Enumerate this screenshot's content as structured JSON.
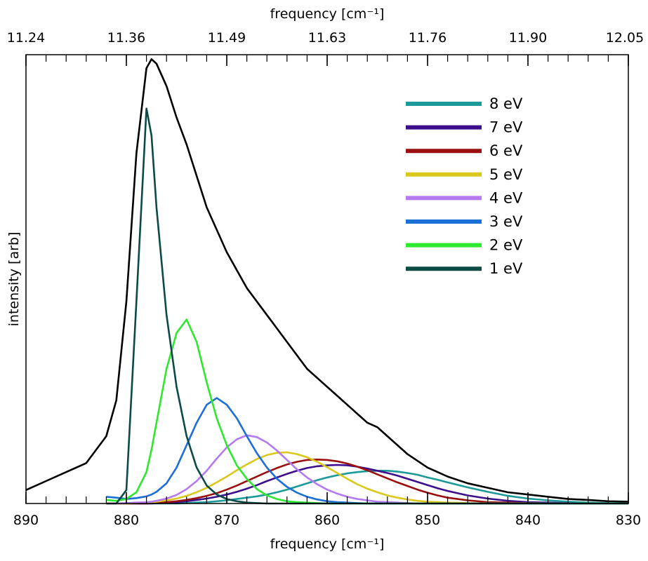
{
  "chart_data": {
    "type": "line",
    "xlabel": "frequency [cm⁻¹]",
    "x2label": "frequency [cm⁻¹]",
    "ylabel": "intensity [arb]",
    "xlim": [
      890,
      830
    ],
    "ylim": [
      0,
      1
    ],
    "x_ticks": [
      "890",
      "880",
      "870",
      "860",
      "850",
      "840",
      "830"
    ],
    "x2_ticks": [
      "11.24",
      "11.36",
      "11.49",
      "11.63",
      "11.76",
      "11.90",
      "12.05"
    ],
    "grid": false,
    "legend_position": "top-right",
    "x": [
      890,
      888,
      886,
      884,
      882,
      881,
      880,
      879,
      878,
      877.5,
      877,
      876,
      875,
      874,
      873,
      872,
      871,
      870,
      869,
      868,
      867,
      866,
      865,
      864,
      863,
      862,
      861,
      860,
      859,
      858,
      857,
      856,
      855,
      854,
      853,
      852,
      851,
      850,
      849,
      848,
      846,
      844,
      842,
      840,
      838,
      836,
      834,
      832,
      830
    ],
    "series": [
      {
        "name": "total",
        "color": "#000000",
        "values": [
          0.03,
          0.05,
          0.07,
          0.09,
          0.15,
          0.23,
          0.45,
          0.78,
          0.97,
          0.99,
          0.98,
          0.93,
          0.86,
          0.8,
          0.73,
          0.66,
          0.61,
          0.56,
          0.52,
          0.48,
          0.45,
          0.42,
          0.39,
          0.36,
          0.33,
          0.3,
          0.28,
          0.26,
          0.24,
          0.22,
          0.2,
          0.18,
          0.17,
          0.15,
          0.13,
          0.11,
          0.095,
          0.08,
          0.07,
          0.06,
          0.045,
          0.035,
          0.025,
          0.02,
          0.015,
          0.01,
          0.008,
          0.005,
          0.004
        ]
      },
      {
        "name": "8 eV",
        "color": "#1c9a9a",
        "values": [
          null,
          null,
          null,
          null,
          0.0,
          0.0,
          0.0,
          0.0,
          0.0,
          0.0,
          0.0,
          0.0,
          0.0,
          0.001,
          0.002,
          0.003,
          0.005,
          0.007,
          0.01,
          0.013,
          0.016,
          0.02,
          0.025,
          0.031,
          0.038,
          0.045,
          0.052,
          0.058,
          0.063,
          0.067,
          0.07,
          0.072,
          0.073,
          0.073,
          0.071,
          0.068,
          0.064,
          0.058,
          0.053,
          0.047,
          0.036,
          0.026,
          0.017,
          0.011,
          0.007,
          0.004,
          0.002,
          0.001,
          0.0
        ]
      },
      {
        "name": "7 eV",
        "color": "#3d0f8c",
        "values": [
          null,
          null,
          null,
          null,
          0.0,
          0.0,
          0.0,
          0.0,
          0.0,
          0.0,
          0.001,
          0.002,
          0.003,
          0.005,
          0.008,
          0.011,
          0.015,
          0.02,
          0.026,
          0.033,
          0.041,
          0.05,
          0.058,
          0.066,
          0.073,
          0.079,
          0.083,
          0.085,
          0.086,
          0.085,
          0.082,
          0.078,
          0.073,
          0.068,
          0.062,
          0.055,
          0.048,
          0.041,
          0.034,
          0.028,
          0.018,
          0.011,
          0.006,
          0.003,
          0.002,
          0.001,
          0.0,
          0.0,
          0.0
        ]
      },
      {
        "name": "6 eV",
        "color": "#9a0f0f",
        "values": [
          null,
          null,
          null,
          null,
          0.0,
          0.0,
          0.0,
          0.0,
          0.0,
          0.001,
          0.002,
          0.003,
          0.005,
          0.008,
          0.012,
          0.017,
          0.023,
          0.031,
          0.04,
          0.05,
          0.06,
          0.07,
          0.079,
          0.087,
          0.093,
          0.097,
          0.098,
          0.097,
          0.094,
          0.089,
          0.082,
          0.074,
          0.065,
          0.056,
          0.047,
          0.039,
          0.031,
          0.024,
          0.018,
          0.013,
          0.007,
          0.003,
          0.002,
          0.001,
          0.0,
          0.0,
          0.0,
          0.0,
          0.0
        ]
      },
      {
        "name": "5 eV",
        "color": "#dbc81c",
        "values": [
          null,
          null,
          null,
          null,
          0.0,
          0.0,
          0.0,
          0.001,
          0.002,
          0.003,
          0.004,
          0.007,
          0.011,
          0.017,
          0.025,
          0.035,
          0.047,
          0.06,
          0.074,
          0.087,
          0.099,
          0.108,
          0.113,
          0.114,
          0.11,
          0.103,
          0.093,
          0.081,
          0.068,
          0.055,
          0.043,
          0.033,
          0.025,
          0.018,
          0.013,
          0.009,
          0.006,
          0.004,
          0.003,
          0.002,
          0.001,
          0.0,
          0.0,
          0.0,
          0.0,
          0.0,
          0.0,
          0.0,
          0.0
        ]
      },
      {
        "name": "4 eV",
        "color": "#b57af0",
        "values": [
          null,
          null,
          null,
          null,
          0.0,
          0.0,
          0.001,
          0.002,
          0.003,
          0.004,
          0.006,
          0.011,
          0.019,
          0.032,
          0.05,
          0.073,
          0.1,
          0.125,
          0.143,
          0.152,
          0.148,
          0.136,
          0.118,
          0.097,
          0.076,
          0.058,
          0.043,
          0.031,
          0.022,
          0.015,
          0.01,
          0.007,
          0.004,
          0.003,
          0.002,
          0.001,
          0.0,
          0.0,
          0.0,
          0.0,
          0.0,
          0.0,
          0.0,
          0.0,
          0.0,
          0.0,
          0.0,
          0.0,
          0.0
        ]
      },
      {
        "name": "3 eV",
        "color": "#1c6fd6",
        "values": [
          null,
          null,
          null,
          null,
          0.015,
          0.013,
          0.01,
          0.012,
          0.016,
          0.02,
          0.026,
          0.045,
          0.08,
          0.13,
          0.18,
          0.22,
          0.235,
          0.22,
          0.19,
          0.15,
          0.112,
          0.08,
          0.055,
          0.037,
          0.024,
          0.015,
          0.009,
          0.005,
          0.003,
          0.002,
          0.001,
          0.0,
          0.0,
          0.0,
          0.0,
          0.0,
          0.0,
          0.0,
          0.0,
          0.0,
          0.0,
          0.0,
          0.0,
          0.0,
          0.0,
          0.0,
          0.0,
          0.0,
          0.0
        ]
      },
      {
        "name": "2 eV",
        "color": "#2ee82e",
        "values": [
          null,
          null,
          null,
          null,
          0.008,
          0.006,
          0.01,
          0.025,
          0.07,
          0.12,
          0.18,
          0.3,
          0.38,
          0.41,
          0.36,
          0.27,
          0.19,
          0.13,
          0.085,
          0.055,
          0.032,
          0.018,
          0.01,
          0.005,
          0.003,
          0.002,
          0.001,
          0.0,
          0.0,
          0.0,
          0.0,
          0.0,
          0.0,
          0.0,
          0.0,
          0.0,
          0.0,
          0.0,
          0.0,
          0.0,
          0.0,
          0.0,
          0.0,
          0.0,
          0.0,
          0.0,
          0.0,
          0.0,
          0.0
        ]
      },
      {
        "name": "1 eV",
        "color": "#0c4a46",
        "values": [
          null,
          null,
          null,
          null,
          0.0,
          0.0,
          0.03,
          0.45,
          0.88,
          0.82,
          0.66,
          0.42,
          0.26,
          0.15,
          0.08,
          0.04,
          0.02,
          0.01,
          0.005,
          0.002,
          0.001,
          0.0,
          0.0,
          0.0,
          0.0,
          0.0,
          0.0,
          0.0,
          0.0,
          0.0,
          0.0,
          0.0,
          0.0,
          0.0,
          0.0,
          0.0,
          0.0,
          0.0,
          0.0,
          0.0,
          0.0,
          0.0,
          0.0,
          0.0,
          0.0,
          0.0,
          0.0,
          0.0,
          0.0
        ]
      }
    ],
    "legend": [
      "8 eV",
      "7 eV",
      "6 eV",
      "5 eV",
      "4 eV",
      "3 eV",
      "2 eV",
      "1 eV"
    ]
  }
}
